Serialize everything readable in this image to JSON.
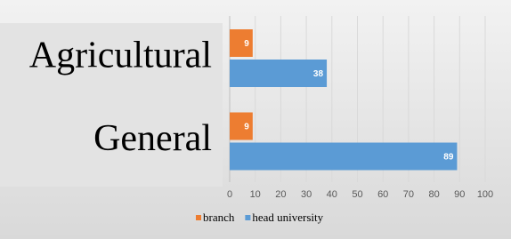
{
  "chart_data": {
    "type": "bar",
    "orientation": "horizontal",
    "categories": [
      "Agricultural",
      "General"
    ],
    "series": [
      {
        "name": "branch",
        "color": "#ed7d31",
        "values": [
          9,
          9
        ]
      },
      {
        "name": "head university",
        "color": "#5b9bd5",
        "values": [
          38,
          89
        ]
      }
    ],
    "xlim": [
      0,
      100
    ],
    "xticks": [
      0,
      10,
      20,
      30,
      40,
      50,
      60,
      70,
      80,
      90,
      100
    ],
    "grid": true,
    "legend": "bottom"
  }
}
